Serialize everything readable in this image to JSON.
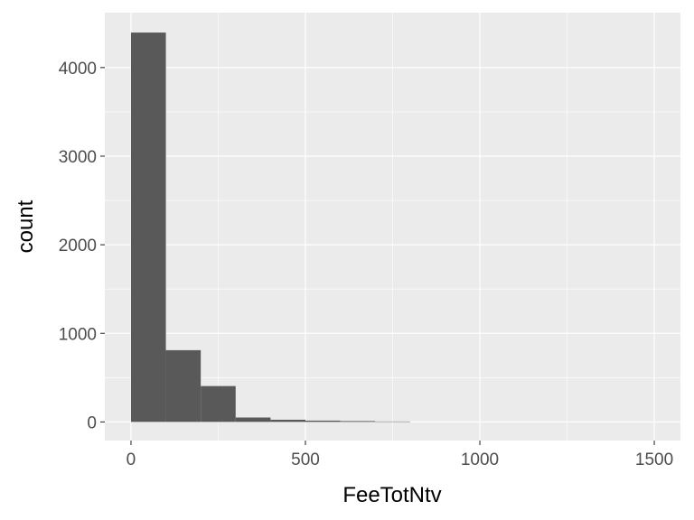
{
  "chart_data": {
    "type": "bar",
    "subtype": "histogram",
    "xlabel": "FeeTotNtv",
    "ylabel": "count",
    "xlim": [
      -75,
      1575
    ],
    "ylim": [
      -210,
      4620
    ],
    "x_ticks": [
      0,
      500,
      1000,
      1500
    ],
    "x_tick_labels": [
      "0",
      "500",
      "1000",
      "1500"
    ],
    "y_ticks": [
      0,
      1000,
      2000,
      3000,
      4000
    ],
    "y_tick_labels": [
      "0",
      "1000",
      "2000",
      "3000",
      "4000"
    ],
    "bin_width": 100,
    "bins": [
      {
        "x0": 0,
        "x1": 100,
        "count": 4395
      },
      {
        "x0": 100,
        "x1": 200,
        "count": 810
      },
      {
        "x0": 200,
        "x1": 300,
        "count": 405
      },
      {
        "x0": 300,
        "x1": 400,
        "count": 50
      },
      {
        "x0": 400,
        "x1": 500,
        "count": 25
      },
      {
        "x0": 500,
        "x1": 600,
        "count": 15
      },
      {
        "x0": 600,
        "x1": 700,
        "count": 10
      },
      {
        "x0": 700,
        "x1": 800,
        "count": 5
      }
    ],
    "grid": true,
    "colors": {
      "panel_background": "#ebebeb",
      "grid_major": "#ffffff",
      "bar_fill": "#595959",
      "tick_label": "#4d4d4d",
      "axis_title": "#000000"
    }
  }
}
